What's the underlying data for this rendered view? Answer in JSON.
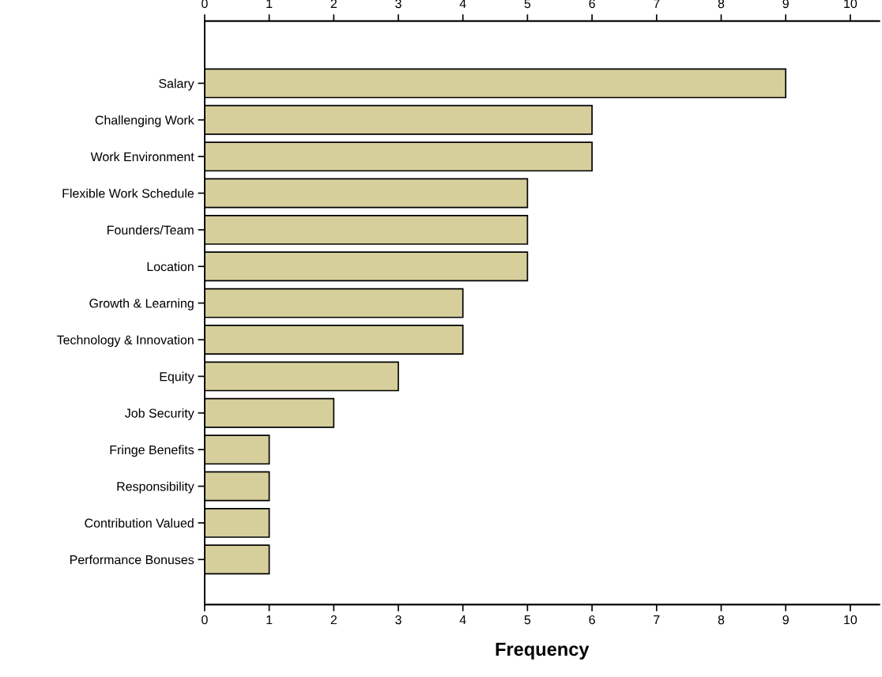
{
  "chart_data": {
    "type": "bar",
    "orientation": "horizontal",
    "xlabel": "Frequency",
    "categories": [
      "Salary",
      "Challenging Work",
      "Work Environment",
      "Flexible Work Schedule",
      "Founders/Team",
      "Location",
      "Growth & Learning",
      "Technology & Innovation",
      "Equity",
      "Job Security",
      "Fringe Benefits",
      "Responsibility",
      "Contribution Valued",
      "Performance Bonuses"
    ],
    "values": [
      9,
      6,
      6,
      5,
      5,
      5,
      4,
      4,
      3,
      2,
      1,
      1,
      1,
      1
    ],
    "color": "#d6cf9c",
    "xlim": [
      0,
      10.45
    ],
    "xticks": [
      0,
      1,
      2,
      3,
      4,
      5,
      6,
      7,
      8,
      9,
      10
    ],
    "x2lim": [
      0,
      10.45
    ],
    "x2ticks": [
      0,
      1,
      2,
      3,
      4,
      5,
      6,
      7,
      8,
      9,
      10
    ],
    "grid": false
  }
}
